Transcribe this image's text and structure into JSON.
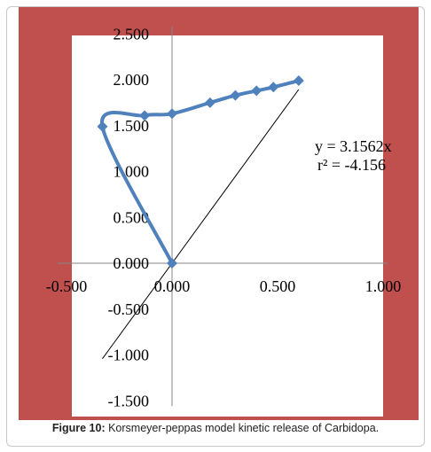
{
  "colors": {
    "outer_background": "#c0504d",
    "plot_area": "#ffffff",
    "series": "#4f81bd",
    "trendline": "#000000",
    "axis": "#868686"
  },
  "equation": "y = 3.1562x",
  "r_squared": "r² = -4.156",
  "caption": {
    "label": "Figure 10:",
    "text": " Korsmeyer-peppas model kinetic release of Carbidopa."
  },
  "chart_data": {
    "type": "scatter",
    "title": "",
    "xlabel": "",
    "ylabel": "",
    "xlim": [
      -0.5,
      1.0
    ],
    "ylim": [
      -1.5,
      2.5
    ],
    "x_ticks": [
      -0.5,
      0.0,
      0.5,
      1.0
    ],
    "y_ticks": [
      -1.5,
      -1.0,
      -0.5,
      0.0,
      0.5,
      1.0,
      1.5,
      2.0,
      2.5
    ],
    "x_tick_labels": [
      "-0.500",
      "0.000",
      "0.500",
      "1.000"
    ],
    "y_tick_labels": [
      "-1.500",
      "-1.000",
      "-0.500",
      "0.000",
      "0.500",
      "1.000",
      "1.500",
      "2.000",
      "2.500"
    ],
    "grid": false,
    "legend": "none",
    "series": [
      {
        "style": "smooth line with diamond markers",
        "points": [
          {
            "x": 0.0,
            "y": 0.0
          },
          {
            "x": -0.33,
            "y": 1.49
          },
          {
            "x": -0.13,
            "y": 1.61
          },
          {
            "x": 0.0,
            "y": 1.63
          },
          {
            "x": 0.18,
            "y": 1.75
          },
          {
            "x": 0.3,
            "y": 1.83
          },
          {
            "x": 0.4,
            "y": 1.88
          },
          {
            "x": 0.48,
            "y": 1.92
          },
          {
            "x": 0.6,
            "y": 1.99
          }
        ]
      }
    ],
    "trendline": {
      "type": "linear",
      "slope": 3.1562,
      "intercept": 0,
      "x_range": [
        -0.33,
        0.6
      ]
    }
  }
}
